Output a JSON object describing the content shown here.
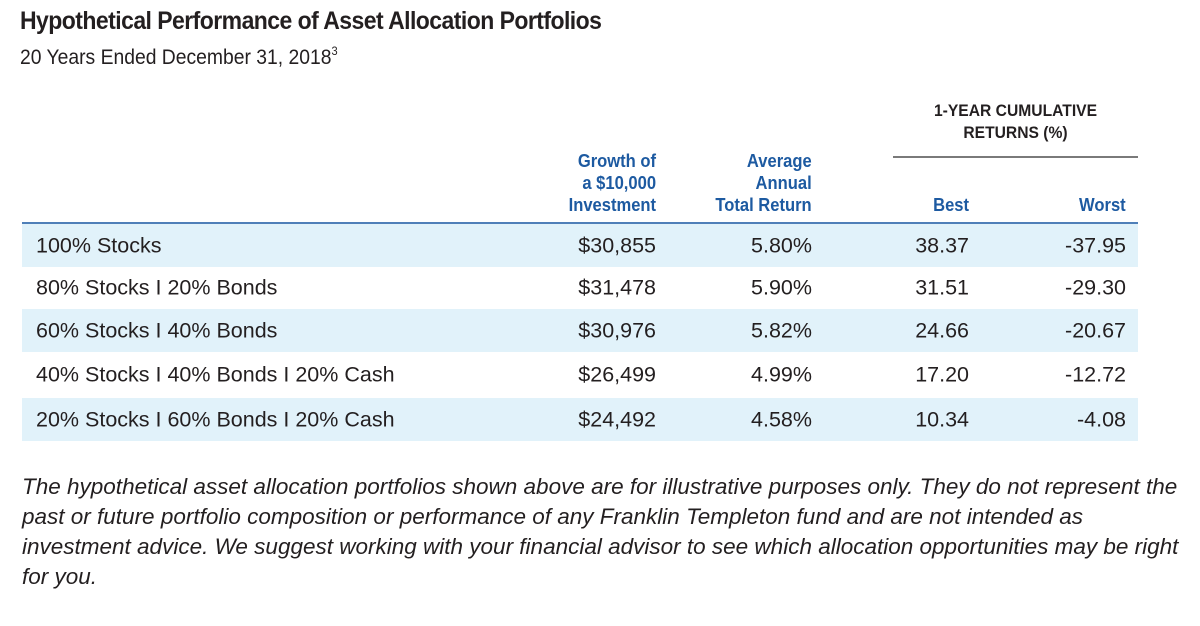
{
  "header": {
    "title": "Hypothetical Performance of Asset Allocation Portfolios",
    "subtitle": "20 Years Ended December 31, 2018",
    "subtitle_footnote_marker": "3"
  },
  "table": {
    "group_header": {
      "line1": "1-YEAR CUMULATIVE",
      "line2": "RETURNS (%)"
    },
    "columns": {
      "growth": [
        "Growth of",
        "a $10,000",
        "Investment"
      ],
      "avg_return": [
        "Average",
        "Annual",
        "Total Return"
      ],
      "best": "Best",
      "worst": "Worst"
    },
    "rows": [
      {
        "portfolio": "100% Stocks",
        "growth": "$30,855",
        "avg_return": "5.80%",
        "best": "38.37",
        "worst": "-37.95"
      },
      {
        "portfolio": "80% Stocks I 20% Bonds",
        "growth": "$31,478",
        "avg_return": "5.90%",
        "best": "31.51",
        "worst": "-29.30"
      },
      {
        "portfolio": "60% Stocks I 40% Bonds",
        "growth": "$30,976",
        "avg_return": "5.82%",
        "best": "24.66",
        "worst": "-20.67"
      },
      {
        "portfolio": "40% Stocks I 40% Bonds I 20% Cash",
        "growth": "$26,499",
        "avg_return": "4.99%",
        "best": "17.20",
        "worst": "-12.72"
      },
      {
        "portfolio": "20% Stocks I 60% Bonds I 20% Cash",
        "growth": "$24,492",
        "avg_return": "4.58%",
        "best": "10.34",
        "worst": "-4.08"
      }
    ]
  },
  "footnote": "The hypothetical asset allocation portfolios shown above are for illustrative purposes only. They do not represent the past or future portfolio composition or performance of any Franklin Templeton fund and are not intended as investment advice. We suggest working with your financial advisor to see which allocation opportunities may be right for you.",
  "colors": {
    "header_blue": "#1d5aa1",
    "row_shade": "#e1f2fa",
    "table_rule": "#4f7fb8"
  }
}
